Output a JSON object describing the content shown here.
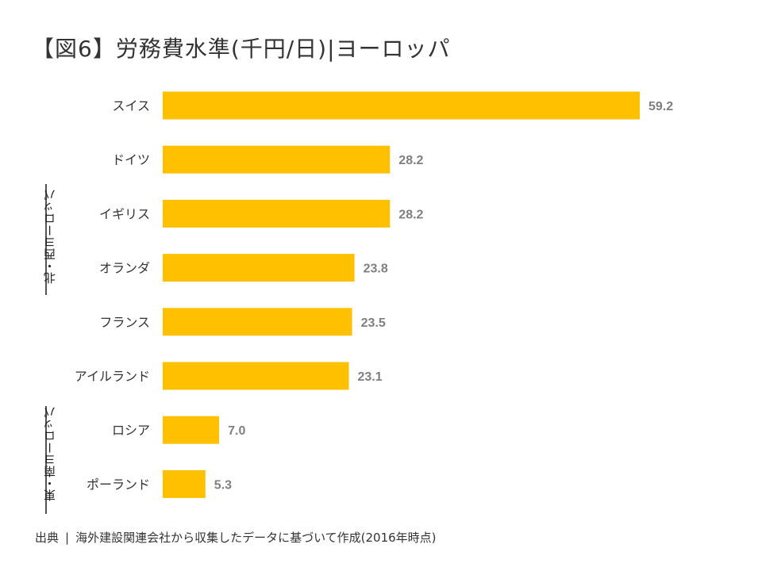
{
  "title": "【図6】労務費水準(千円/日)|ヨーロッパ",
  "groups": {
    "north_west": "北・西ヨーロッパ",
    "east_south": "東・南ヨーロッパ"
  },
  "source": {
    "label": "出典",
    "separator": "|",
    "text": "海外建設関連会社から収集したデータに基づいて作成(2016年時点)"
  },
  "colors": {
    "bar": "#FFC000",
    "value_label": "#7F7F7F",
    "category_label": "#333333"
  },
  "chart_data": {
    "type": "bar",
    "orientation": "horizontal",
    "title": "【図6】労務費水準(千円/日)|ヨーロッパ",
    "xlabel": "",
    "ylabel": "",
    "categories": [
      "スイス",
      "ドイツ",
      "イギリス",
      "オランダ",
      "フランス",
      "アイルランド",
      "ロシア",
      "ポーランド"
    ],
    "values": [
      59.2,
      28.2,
      28.2,
      23.8,
      23.5,
      23.1,
      7.0,
      5.3
    ],
    "value_labels": [
      "59.2",
      "28.2",
      "28.2",
      "23.8",
      "23.5",
      "23.1",
      "7.0",
      "5.3"
    ],
    "category_groups": [
      {
        "name": "北・西ヨーロッパ",
        "categories": [
          "ドイツ",
          "イギリス",
          "オランダ",
          "フランス",
          "アイルランド"
        ]
      },
      {
        "name": "東・南ヨーロッパ",
        "categories": [
          "ロシア",
          "ポーランド"
        ]
      }
    ],
    "xlim": [
      0,
      59.2
    ],
    "grid": false,
    "legend": "none"
  }
}
